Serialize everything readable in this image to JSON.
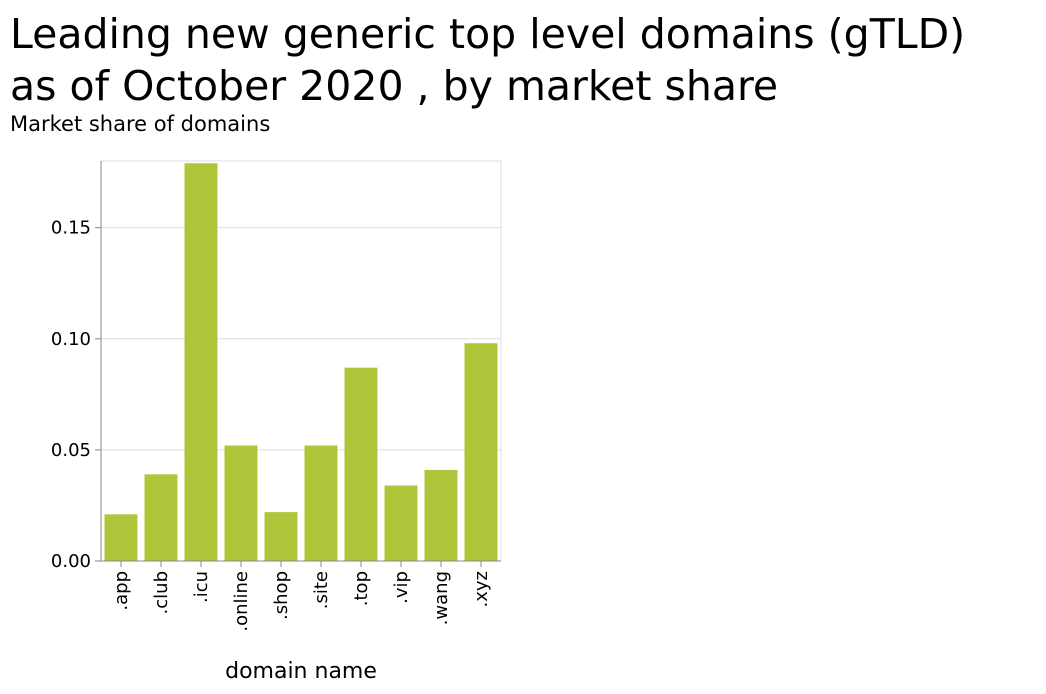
{
  "title_line1": "Leading new generic top level domains (gTLD)",
  "title_line2": "as of October 2020 , by market share",
  "chart_data": {
    "type": "bar",
    "title": "Leading new generic top level domains (gTLD) as of October 2020 , by market share",
    "ylabel": "Market share of domains",
    "xlabel": "domain name",
    "categories": [
      ".app",
      ".club",
      ".icu",
      ".online",
      ".shop",
      ".site",
      ".top",
      ".vip",
      ".wang",
      ".xyz"
    ],
    "values": [
      0.021,
      0.039,
      0.179,
      0.052,
      0.022,
      0.052,
      0.087,
      0.034,
      0.041,
      0.098
    ],
    "ylim": [
      0,
      0.18
    ],
    "yticks": [
      0.0,
      0.05,
      0.1,
      0.15
    ],
    "ytick_labels": [
      "0.00",
      "0.05",
      "0.10",
      "0.15"
    ],
    "grid": true,
    "bar_color": "#aec73a",
    "grid_color": "#dddddd"
  }
}
